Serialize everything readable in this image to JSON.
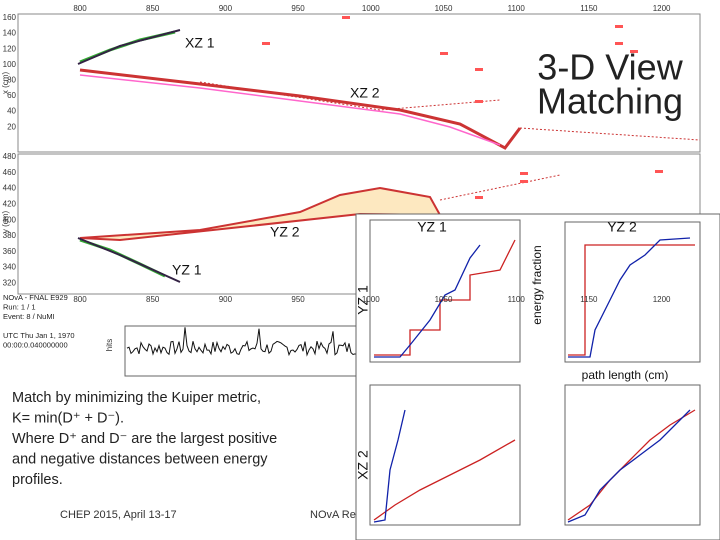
{
  "slide": {
    "title": [
      "3-D View",
      "Matching"
    ],
    "views": {
      "xz1": "XZ 1",
      "xz2": "XZ 2",
      "yz1": "YZ 1",
      "yz2": "YZ 2"
    },
    "event_display": {
      "x_label": "x (cm)",
      "y_label": "y (cm)",
      "x_ticks": [
        "800",
        "850",
        "900",
        "950",
        "1000",
        "1050",
        "1100",
        "1150",
        "1200"
      ],
      "xz_ticks": [
        "160",
        "140",
        "120",
        "100",
        "80",
        "60",
        "40",
        "20"
      ],
      "yz_ticks": [
        "480",
        "460",
        "440",
        "420",
        "400",
        "380",
        "360",
        "340",
        "320"
      ],
      "info": [
        "NOvA - FNAL E929",
        "Run: 1 / 1",
        "Event: 8 / NuMI",
        "",
        "UTC Thu Jan 1, 1970",
        "00:00:0.040000000"
      ],
      "hits_label": "hits"
    },
    "plots": {
      "y_label": "energy fraction",
      "x_label": "path length (cm)",
      "top_left": "YZ 1",
      "top_right": "YZ 2",
      "row1": "YZ 1",
      "row2": "XZ 2"
    },
    "body": [
      "Match by minimizing the Kuiper metric,",
      "K= min(D⁺ + D⁻).",
      "Where D⁺ and D⁻ are the largest positive",
      "and negative distances between energy",
      "profiles."
    ],
    "footer": {
      "left": "CHEP 2015,  April 13-17",
      "center": "NOvA Re"
    }
  }
}
